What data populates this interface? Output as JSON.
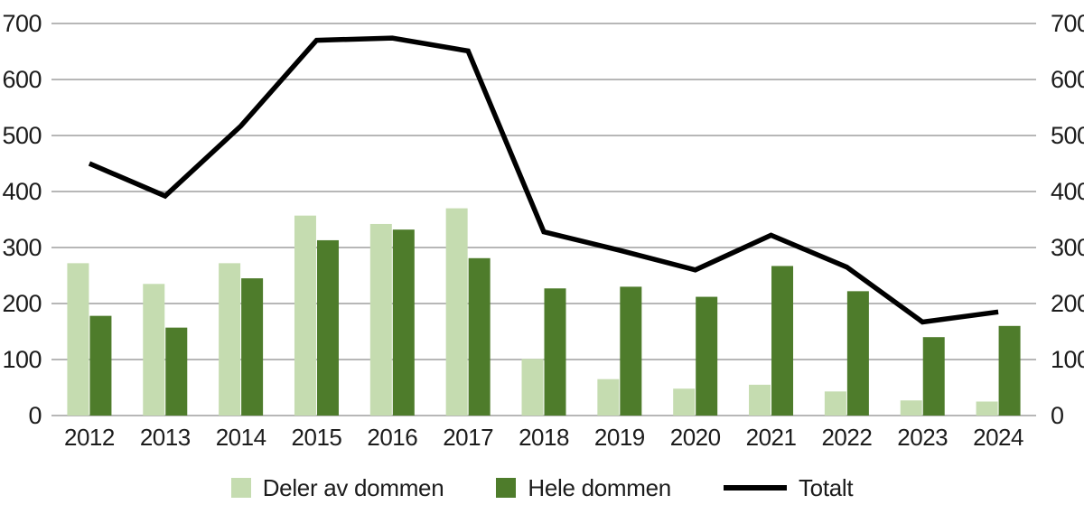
{
  "chart_data": {
    "type": "bar",
    "subtype": "grouped-bars-with-line-overlay",
    "categories": [
      "2012",
      "2013",
      "2014",
      "2015",
      "2016",
      "2017",
      "2018",
      "2019",
      "2020",
      "2021",
      "2022",
      "2023",
      "2024"
    ],
    "series": [
      {
        "name": "Deler av dommen",
        "type": "bar",
        "color": "#c5dcb0",
        "values": [
          272,
          235,
          272,
          357,
          342,
          370,
          101,
          65,
          48,
          55,
          43,
          27,
          25
        ]
      },
      {
        "name": "Hele dommen",
        "type": "bar",
        "color": "#4e7c2b",
        "values": [
          178,
          157,
          245,
          313,
          332,
          281,
          227,
          230,
          212,
          267,
          222,
          140,
          160
        ]
      },
      {
        "name": "Totalt",
        "type": "line",
        "color": "#000000",
        "values": [
          450,
          392,
          517,
          670,
          674,
          651,
          328,
          295,
          260,
          322,
          265,
          167,
          185
        ]
      }
    ],
    "title": "",
    "xlabel": "",
    "ylabel": "",
    "ylim": [
      0,
      700
    ],
    "ytick_step": 100,
    "yticks": [
      0,
      100,
      200,
      300,
      400,
      500,
      600,
      700
    ],
    "grid": true,
    "grid_color": "#adadad",
    "text_color": "#1c1c1c",
    "axes": "dual-y (left and right tick labels, no vertical axis lines)",
    "legend_position": "bottom-center"
  }
}
